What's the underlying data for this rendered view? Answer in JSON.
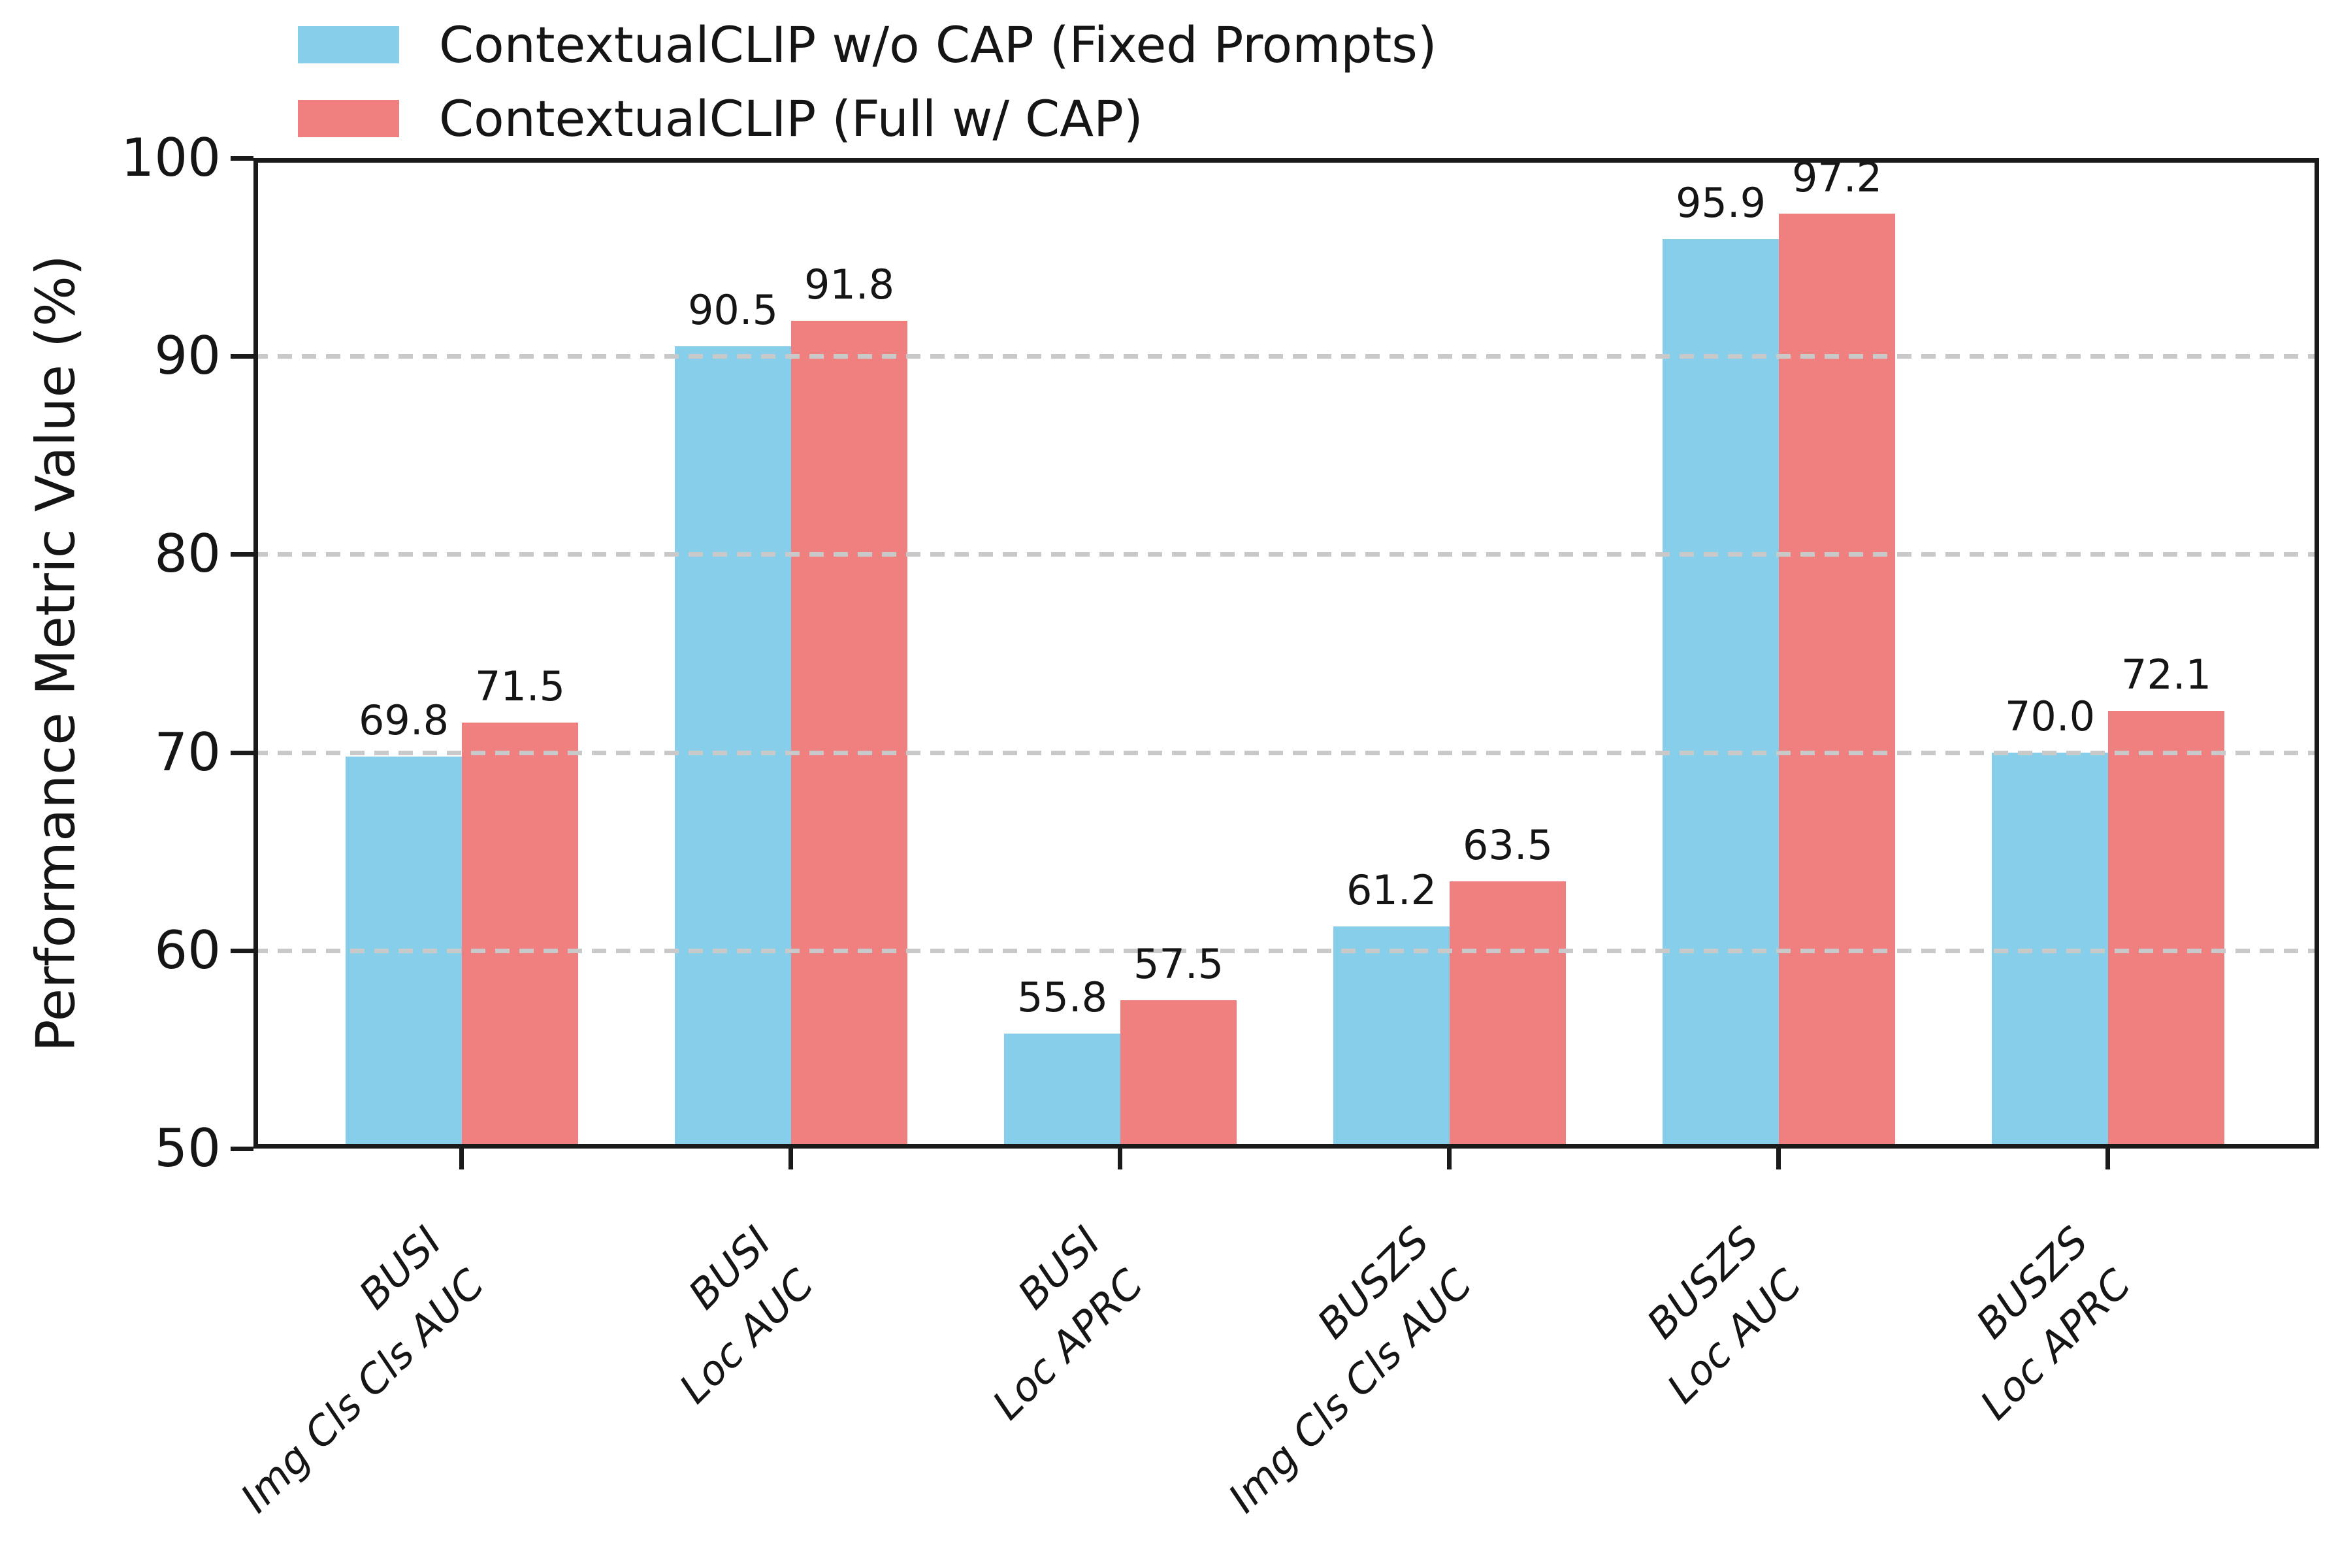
{
  "chart_data": {
    "type": "bar",
    "title": "",
    "xlabel": "",
    "ylabel": "Performance Metric Value (%)",
    "ylim": [
      50,
      100
    ],
    "yticks": [
      50,
      60,
      70,
      80,
      90,
      100
    ],
    "grid": {
      "axis": "y",
      "lines_at": [
        60,
        70,
        80,
        90
      ],
      "style": "dashed",
      "color": "#c9c9c9",
      "drawn_on_top_of_bars": true
    },
    "categories": [
      [
        "BUSI",
        "Img Cls Cls AUC"
      ],
      [
        "BUSI",
        "Loc AUC"
      ],
      [
        "BUSI",
        "Loc APRC"
      ],
      [
        "BUSZS",
        "Img Cls Cls AUC"
      ],
      [
        "BUSZS",
        "Loc AUC"
      ],
      [
        "BUSZS",
        "Loc APRC"
      ]
    ],
    "series": [
      {
        "name": "ContextualCLIP w/o CAP (Fixed Prompts)",
        "color": "#87CEEB",
        "values": [
          69.8,
          90.5,
          55.8,
          61.2,
          95.9,
          70.0
        ],
        "value_labels": [
          "69.8",
          "90.5",
          "55.8",
          "61.2",
          "95.9",
          "70.0"
        ]
      },
      {
        "name": "ContextualCLIP (Full w/ CAP)",
        "color": "#F08080",
        "values": [
          71.5,
          91.8,
          57.5,
          63.5,
          97.2,
          72.1
        ],
        "value_labels": [
          "71.5",
          "91.8",
          "57.5",
          "63.5",
          "97.2",
          "72.1"
        ]
      }
    ],
    "legend_position": "upper-left, above plot, no frame",
    "axis_color": "#1a1a1a",
    "text_color": "#151515"
  }
}
